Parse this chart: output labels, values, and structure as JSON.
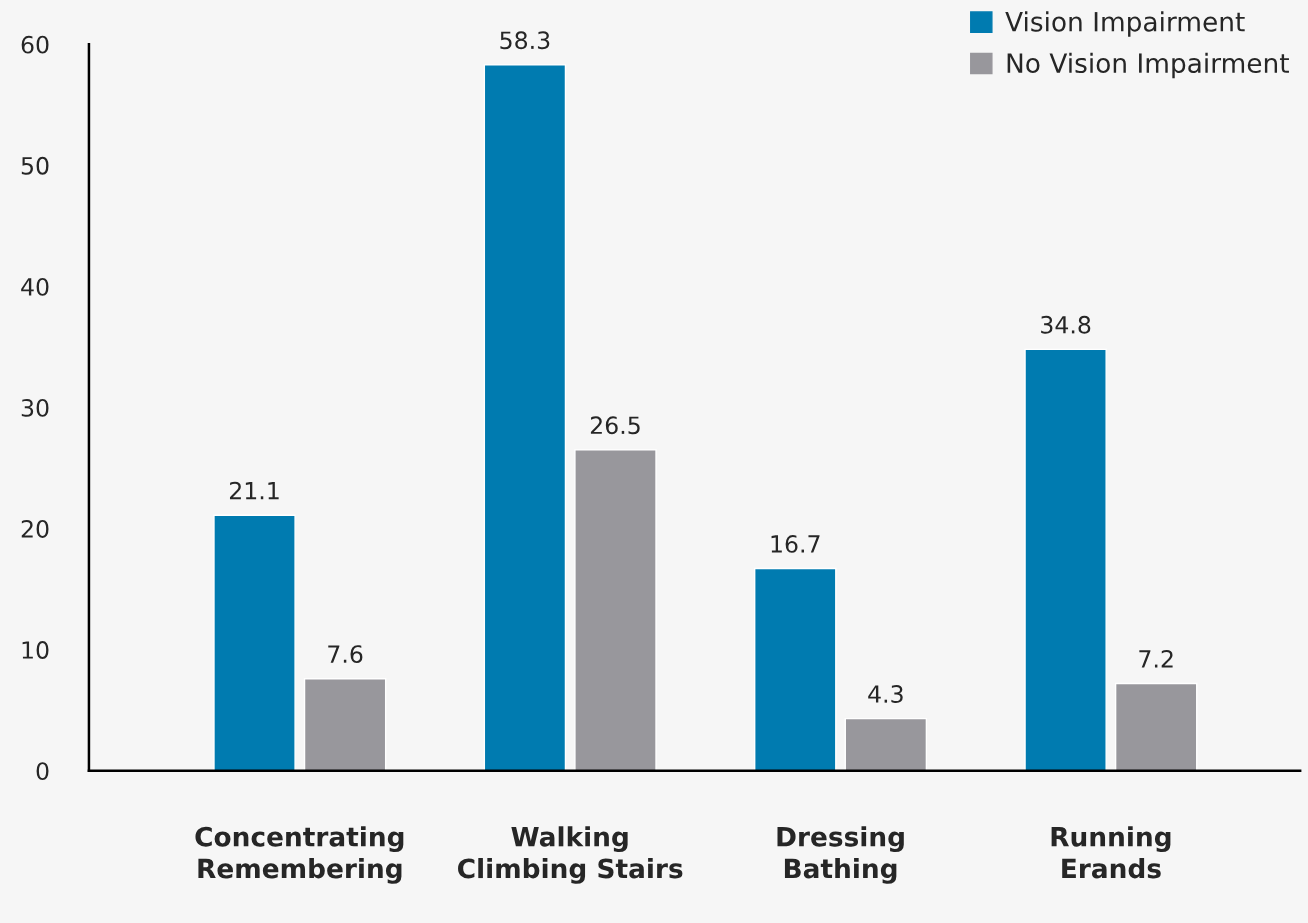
{
  "chart_data": {
    "type": "bar",
    "categories": [
      "Concentrating\nRemembering",
      "Walking\nClimbing Stairs",
      "Dressing\nBathing",
      "Running\nErands"
    ],
    "series": [
      {
        "name": "Vision Impairment",
        "color": "#007bb0",
        "values": [
          21.1,
          58.3,
          16.7,
          34.8
        ]
      },
      {
        "name": "No Vision Impairment",
        "color": "#98979c",
        "values": [
          7.6,
          26.5,
          4.3,
          7.2
        ]
      }
    ],
    "ylim": [
      0,
      60
    ],
    "yticks": [
      0,
      10,
      20,
      30,
      40,
      50,
      60
    ],
    "data_labels": true,
    "grid": false,
    "legend": "top right"
  }
}
